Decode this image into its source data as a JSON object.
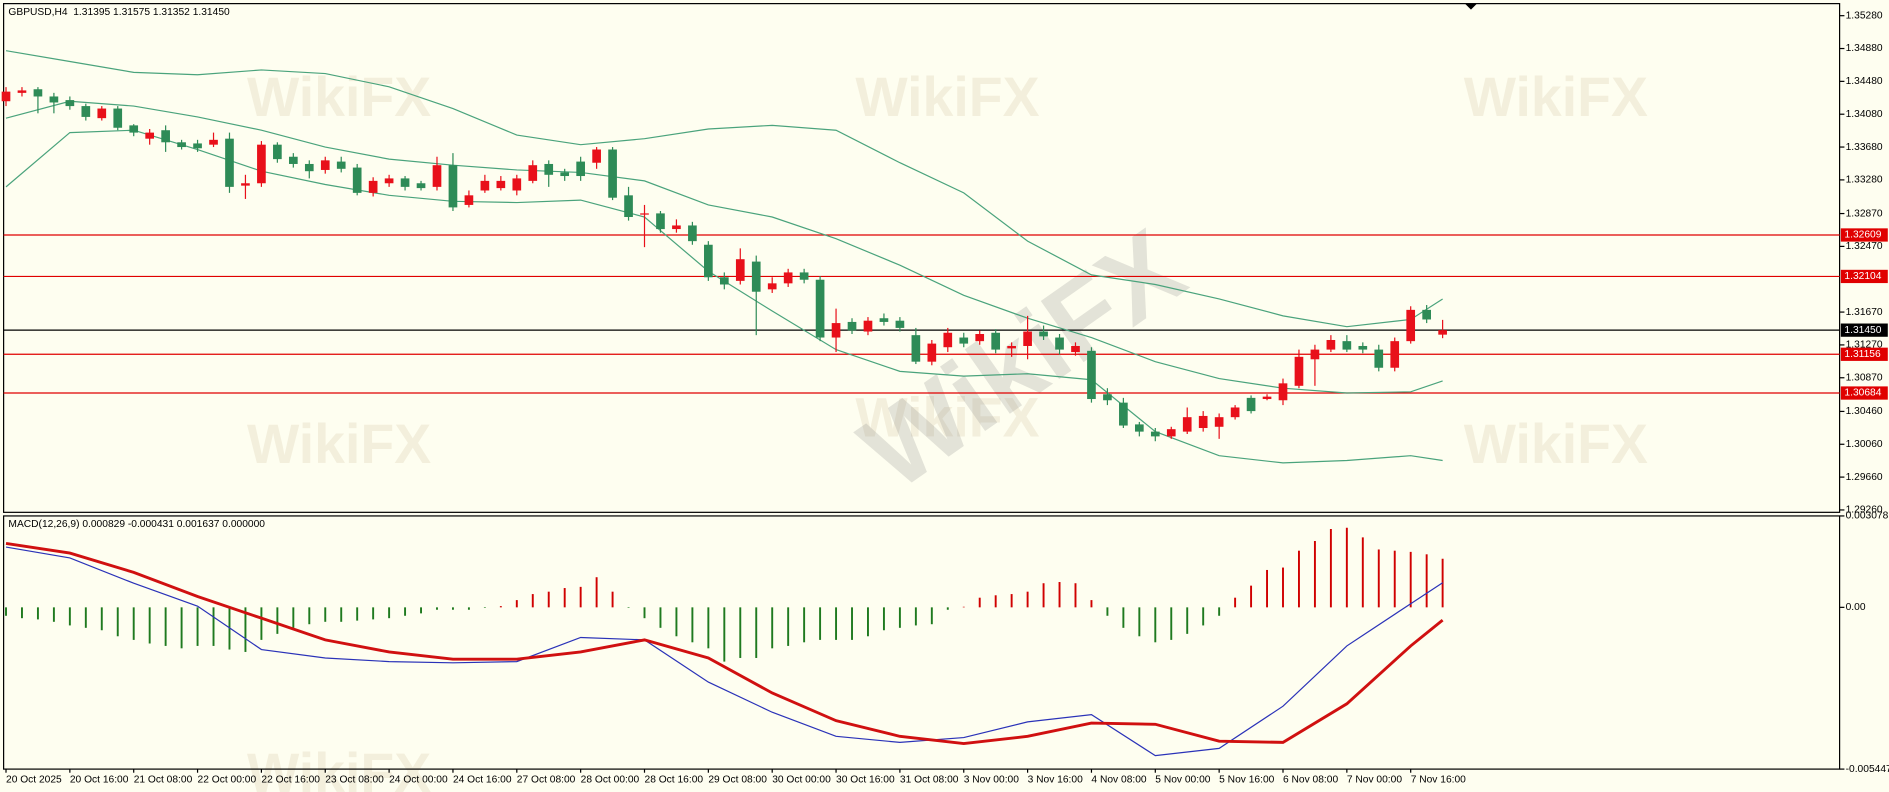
{
  "watermark": "WikiFX",
  "chart_data": [
    {
      "type": "candlestick",
      "title": "GBPUSD,H4  1.31395 1.31575 1.31352 1.31450",
      "categories": [
        "20 Oct 2025",
        null,
        null,
        null,
        "20 Oct 16:00",
        null,
        null,
        null,
        "21 Oct 08:00",
        null,
        null,
        null,
        "22 Oct 00:00",
        null,
        null,
        null,
        "22 Oct 16:00",
        null,
        null,
        null,
        "23 Oct 08:00",
        null,
        null,
        null,
        "24 Oct 00:00",
        null,
        null,
        null,
        "24 Oct 16:00",
        null,
        null,
        null,
        "27 Oct 08:00",
        null,
        null,
        null,
        "28 Oct 00:00",
        null,
        null,
        null,
        "28 Oct 16:00",
        null,
        null,
        null,
        "29 Oct 08:00",
        null,
        null,
        null,
        "30 Oct 00:00",
        null,
        null,
        null,
        "30 Oct 16:00",
        null,
        null,
        null,
        "31 Oct 08:00",
        null,
        null,
        null,
        "3 Nov 00:00",
        null,
        null,
        null,
        "3 Nov 16:00",
        null,
        null,
        null,
        "4 Nov 08:00",
        null,
        null,
        null,
        "5 Nov 00:00",
        null,
        null,
        null,
        "5 Nov 16:00",
        null,
        null,
        null,
        "6 Nov 08:00",
        null,
        null,
        null,
        "7 Nov 00:00",
        null,
        null,
        null,
        "7 Nov 16:00",
        null,
        null
      ],
      "open": [
        1.34238,
        1.3434,
        1.34384,
        1.34296,
        1.34252,
        1.34179,
        1.34032,
        1.34149,
        1.33944,
        1.33782,
        1.33885,
        1.33738,
        1.33724,
        1.33709,
        1.33782,
        1.3321,
        1.33239,
        1.33709,
        1.33562,
        1.33474,
        1.33401,
        1.33503,
        1.3343,
        1.33122,
        1.33239,
        1.33298,
        1.33239,
        1.33195,
        1.33459,
        1.32975,
        1.33151,
        1.3318,
        1.33151,
        1.33268,
        1.33474,
        1.33371,
        1.33503,
        1.33489,
        1.3365,
        1.33092,
        1.32857,
        1.32872,
        1.32681,
        1.32725,
        1.3249,
        1.32094,
        1.3205,
        1.32285,
        1.31947,
        1.3202,
        1.32153,
        1.32064,
        1.3136,
        1.3155,
        1.31433,
        1.31595,
        1.31565,
        1.31389,
        1.31066,
        1.31242,
        1.3136,
        1.31316,
        1.31418,
        1.31228,
        1.31257,
        1.31433,
        1.3136,
        1.31183,
        1.31198,
        1.30669,
        1.30567,
        1.30302,
        1.30214,
        1.30156,
        1.30214,
        1.30258,
        1.30273,
        1.3039,
        1.30625,
        1.30611,
        1.30596,
        1.30772,
        1.31095,
        1.31213,
        1.31316,
        1.31257,
        1.31213,
        1.30992,
        1.31316,
        1.31697,
        1.31395
      ],
      "high": [
        1.3441,
        1.3441,
        1.3441,
        1.3434,
        1.34296,
        1.34208,
        1.34179,
        1.34179,
        1.33959,
        1.339,
        1.33944,
        1.33768,
        1.33768,
        1.33856,
        1.33856,
        1.33342,
        1.33753,
        1.33738,
        1.33606,
        1.33518,
        1.33562,
        1.33562,
        1.33474,
        1.33312,
        1.33342,
        1.33327,
        1.33268,
        1.33562,
        1.33606,
        1.33151,
        1.33342,
        1.33327,
        1.33342,
        1.33518,
        1.33518,
        1.33415,
        1.33562,
        1.3368,
        1.3368,
        1.33195,
        1.32975,
        1.32901,
        1.32799,
        1.32769,
        1.32534,
        1.32153,
        1.32446,
        1.32358,
        1.32094,
        1.32197,
        1.32197,
        1.32108,
        1.31712,
        1.31595,
        1.31609,
        1.31653,
        1.31609,
        1.31477,
        1.3133,
        1.31477,
        1.31418,
        1.31447,
        1.31462,
        1.31301,
        1.31624,
        1.31506,
        1.31403,
        1.31301,
        1.31242,
        1.30743,
        1.30625,
        1.30332,
        1.30258,
        1.30273,
        1.30508,
        1.30464,
        1.30435,
        1.30537,
        1.30655,
        1.30669,
        1.3086,
        1.31213,
        1.31272,
        1.31389,
        1.31389,
        1.31301,
        1.31272,
        1.3136,
        1.31741,
        1.31756,
        1.31575
      ],
      "low": [
        1.34179,
        1.34296,
        1.34091,
        1.34091,
        1.34135,
        1.34003,
        1.34003,
        1.33885,
        1.33812,
        1.33709,
        1.33621,
        1.3365,
        1.33621,
        1.3368,
        1.33122,
        1.33048,
        1.33195,
        1.33489,
        1.3343,
        1.33298,
        1.33356,
        1.33371,
        1.33092,
        1.33078,
        1.33195,
        1.33151,
        1.33151,
        1.33151,
        1.32901,
        1.32945,
        1.33122,
        1.33151,
        1.33092,
        1.33239,
        1.33195,
        1.33268,
        1.33268,
        1.33415,
        1.33034,
        1.32784,
        1.32461,
        1.32637,
        1.32637,
        1.3249,
        1.3205,
        1.31947,
        1.32006,
        1.31389,
        1.31903,
        1.31976,
        1.3202,
        1.31316,
        1.31183,
        1.31403,
        1.31389,
        1.31506,
        1.31433,
        1.31037,
        1.31022,
        1.31183,
        1.31242,
        1.31272,
        1.31169,
        1.31125,
        1.31095,
        1.3133,
        1.31154,
        1.31139,
        1.30567,
        1.30537,
        1.30258,
        1.30156,
        1.30097,
        1.30126,
        1.30185,
        1.30214,
        1.30126,
        1.30361,
        1.30435,
        1.30596,
        1.30537,
        1.30743,
        1.30772,
        1.31183,
        1.31183,
        1.31169,
        1.30948,
        1.30948,
        1.31286,
        1.31536,
        1.31352
      ],
      "close": [
        1.34355,
        1.3437,
        1.34296,
        1.34223,
        1.34179,
        1.34047,
        1.34149,
        1.33915,
        1.33856,
        1.33856,
        1.33738,
        1.3368,
        1.33665,
        1.33768,
        1.33195,
        1.33239,
        1.33709,
        1.33533,
        1.33474,
        1.33386,
        1.33518,
        1.33415,
        1.33122,
        1.33268,
        1.33298,
        1.33195,
        1.3318,
        1.33459,
        1.32945,
        1.33092,
        1.33268,
        1.33268,
        1.33298,
        1.33459,
        1.33342,
        1.33327,
        1.33327,
        1.3365,
        1.33063,
        1.32828,
        1.32872,
        1.32681,
        1.32725,
        1.32534,
        1.32094,
        1.32006,
        1.32314,
        1.31918,
        1.3202,
        1.32153,
        1.32064,
        1.3136,
        1.31536,
        1.31447,
        1.31565,
        1.3155,
        1.31477,
        1.31066,
        1.31286,
        1.31418,
        1.31286,
        1.31403,
        1.31213,
        1.31257,
        1.31433,
        1.31374,
        1.31213,
        1.31257,
        1.30611,
        1.30596,
        1.30288,
        1.30214,
        1.30156,
        1.30244,
        1.3039,
        1.30405,
        1.3039,
        1.30508,
        1.30464,
        1.3064,
        1.30802,
        1.31125,
        1.31213,
        1.3133,
        1.31213,
        1.31213,
        1.30992,
        1.31316,
        1.31697,
        1.3158,
        1.3145
      ],
      "up_color": "#e8101a",
      "down_color": "#2e8b57",
      "lines": [
        {
          "color": "#4aa37c",
          "x": [
            0,
            4,
            8,
            12,
            16,
            20,
            24,
            28,
            32,
            36,
            40,
            44,
            48,
            52,
            56,
            60,
            64,
            68,
            72,
            76,
            80,
            84,
            88,
            90
          ],
          "values": [
            1.34854,
            1.34722,
            1.3459,
            1.34561,
            1.34619,
            1.34575,
            1.34414,
            1.34149,
            1.33826,
            1.33709,
            1.33782,
            1.339,
            1.33944,
            1.33885,
            1.33489,
            1.33122,
            1.32534,
            1.32123,
            1.32006,
            1.3183,
            1.31624,
            1.31492,
            1.3158,
            1.3183
          ]
        },
        {
          "color": "#4aa37c",
          "x": [
            0,
            4,
            8,
            12,
            16,
            20,
            24,
            28,
            32,
            36,
            40,
            44,
            48,
            52,
            56,
            60,
            64,
            68,
            72,
            76,
            80,
            84,
            88,
            90
          ],
          "values": [
            1.34032,
            1.34238,
            1.34179,
            1.34047,
            1.33885,
            1.3368,
            1.33533,
            1.33459,
            1.33401,
            1.33371,
            1.33268,
            1.32975,
            1.32828,
            1.32564,
            1.32241,
            1.31874,
            1.31595,
            1.3136,
            1.31066,
            1.3086,
            1.30743,
            1.30684,
            1.30699,
            1.30831
          ]
        },
        {
          "color": "#4aa37c",
          "x": [
            0,
            4,
            8,
            12,
            16,
            20,
            24,
            28,
            32,
            36,
            40,
            44,
            48,
            52,
            56,
            60,
            64,
            68,
            72,
            76,
            80,
            84,
            88,
            90
          ],
          "values": [
            1.33195,
            1.33856,
            1.33885,
            1.3365,
            1.33386,
            1.33224,
            1.33092,
            1.33019,
            1.33004,
            1.33034,
            1.32828,
            1.32167,
            1.31683,
            1.31213,
            1.30948,
            1.3089,
            1.30919,
            1.30846,
            1.30214,
            1.29921,
            1.29833,
            1.29862,
            1.29921,
            1.29862
          ]
        }
      ],
      "levels": [
        {
          "value": 1.32609,
          "color": "#e00000"
        },
        {
          "value": 1.32104,
          "color": "#e00000"
        },
        {
          "value": 1.3145,
          "label": "1.31450",
          "color": "#000000"
        },
        {
          "value": 1.31156,
          "color": "#e00000"
        },
        {
          "value": 1.30684,
          "color": "#e00000"
        }
      ],
      "xlim": [
        -0.15,
        114.87
      ],
      "ylim": [
        1.29231,
        1.35427
      ],
      "yticks": [
        {
          "value": 1.3528,
          "label": "1.35280"
        },
        {
          "value": 1.3488,
          "label": "1.34880"
        },
        {
          "value": 1.3448,
          "label": "1.34480"
        },
        {
          "value": 1.3408,
          "label": "1.34080"
        },
        {
          "value": 1.3368,
          "label": "1.33680"
        },
        {
          "value": 1.3328,
          "label": "1.33280"
        },
        {
          "value": 1.3287,
          "label": "1.32870"
        },
        {
          "value": 1.3247,
          "label": "1.32470"
        },
        {
          "value": 1.3167,
          "label": "1.31670"
        },
        {
          "value": 1.3127,
          "label": "1.31270"
        },
        {
          "value": 1.3087,
          "label": "1.30870"
        },
        {
          "value": 1.3046,
          "label": "1.30460"
        },
        {
          "value": 1.3006,
          "label": "1.30060"
        },
        {
          "value": 1.2966,
          "label": "1.29660"
        },
        {
          "value": 1.2926,
          "label": "1.29260"
        }
      ]
    },
    {
      "type": "macd",
      "title": "MACD(12,26,9) 0.000829 -0.000431 0.001637 0.000000",
      "histogram": {
        "positive_color": "#d00000",
        "negative_color": "#1f7a1f",
        "values": [
          -0.000284,
          -0.000365,
          -0.000406,
          -0.000487,
          -0.000609,
          -0.00069,
          -0.000771,
          -0.000974,
          -0.001096,
          -0.001218,
          -0.001299,
          -0.00138,
          -0.001299,
          -0.001299,
          -0.001421,
          -0.001502,
          -0.001096,
          -0.000893,
          -0.00069,
          -0.000568,
          -0.000487,
          -0.000487,
          -0.000447,
          -0.000406,
          -0.000365,
          -0.000284,
          -0.000203,
          -8.1e-05,
          -8.1e-05,
          -8.1e-05,
          -2e-05,
          4.1e-05,
          0.000244,
          0.000447,
          0.000528,
          0.00065,
          0.00069,
          0.001015,
          0.000528,
          -2e-05,
          -0.000365,
          -0.00069,
          -0.000974,
          -0.001177,
          -0.00138,
          -0.001827,
          -0.001705,
          -0.001705,
          -0.00138,
          -0.001299,
          -0.001177,
          -0.001096,
          -0.001096,
          -0.001096,
          -0.000974,
          -0.000771,
          -0.00069,
          -0.000609,
          -0.000568,
          -8.1e-05,
          2e-05,
          0.000325,
          0.000406,
          0.000447,
          0.000528,
          0.000812,
          0.000853,
          0.000812,
          0.000244,
          -0.000284,
          -0.00069,
          -0.000974,
          -0.001177,
          -0.001096,
          -0.000893,
          -0.000609,
          -0.000284,
          0.000325,
          0.000731,
          0.001259,
          0.00134,
          0.001908,
          0.002233,
          0.002639,
          0.00268,
          0.002355,
          0.001949,
          0.001908,
          0.001868,
          0.001786,
          0.001637
        ]
      },
      "series": [
        {
          "color": "#2a32b8",
          "x": [
            0,
            4,
            8,
            12,
            16,
            20,
            24,
            28,
            32,
            36,
            40,
            44,
            48,
            52,
            56,
            60,
            64,
            68,
            72,
            76,
            80,
            84,
            88,
            90
          ],
          "values": [
            0.00203,
            0.001665,
            0.000812,
            4.1e-05,
            -0.001421,
            -0.001705,
            -0.001827,
            -0.001868,
            -0.001827,
            -0.001015,
            -0.001096,
            -0.002517,
            -0.003532,
            -0.004344,
            -0.004547,
            -0.004385,
            -0.003857,
            -0.003613,
            -0.004994,
            -0.00475,
            -0.003329,
            -0.001299,
            0.000122,
            0.000829
          ]
        },
        {
          "color": "#d01010",
          "x": [
            0,
            4,
            8,
            12,
            16,
            20,
            24,
            28,
            32,
            36,
            40,
            44,
            48,
            52,
            56,
            60,
            64,
            68,
            72,
            76,
            80,
            84,
            88,
            90
          ],
          "values": [
            0.002152,
            0.001827,
            0.001177,
            0.000365,
            -0.000365,
            -0.001096,
            -0.001502,
            -0.001746,
            -0.001746,
            -0.001502,
            -0.001096,
            -0.001705,
            -0.002883,
            -0.003816,
            -0.004344,
            -0.004588,
            -0.004344,
            -0.003898,
            -0.003938,
            -0.004507,
            -0.004547,
            -0.003248,
            -0.001299,
            -0.000431
          ]
        }
      ],
      "ylim": [
        -0.005447,
        0.003078
      ],
      "yticks": [
        0.003078,
        {
          "value": 0,
          "label": "0.00"
        },
        -0.005447
      ]
    }
  ]
}
